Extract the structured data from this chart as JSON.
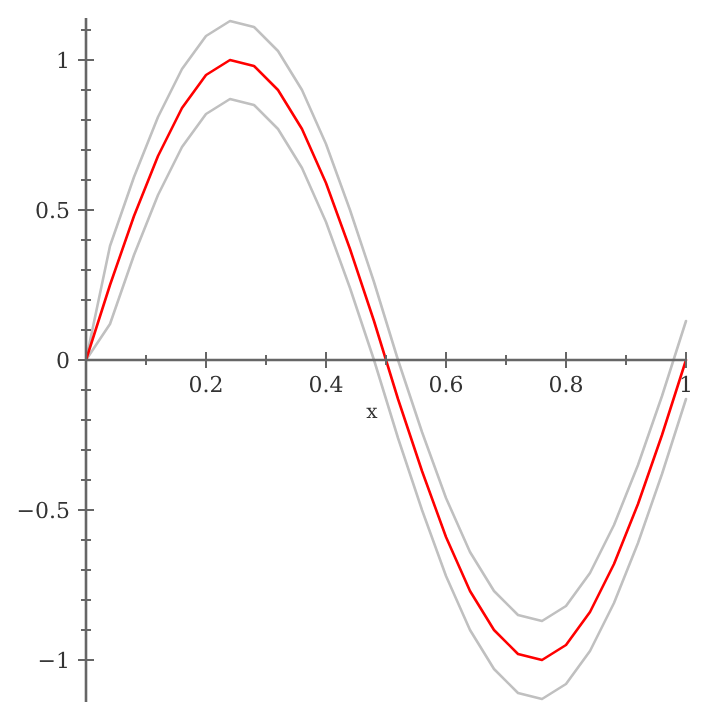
{
  "chart_data": {
    "type": "line",
    "xlabel": "x",
    "xlim": [
      0,
      1
    ],
    "ylim": [
      -1.14,
      1.14
    ],
    "xticks": [
      {
        "value": 0.1,
        "label": null
      },
      0.2,
      {
        "value": 0.3,
        "label": null
      },
      0.4,
      {
        "value": 0.5,
        "label": null
      },
      0.6,
      {
        "value": 0.7,
        "label": null
      },
      0.8,
      {
        "value": 0.9,
        "label": null
      },
      1
    ],
    "yticks": [
      {
        "value": -1,
        "label": "−1"
      },
      {
        "value": -0.9,
        "label": null
      },
      {
        "value": -0.8,
        "label": null
      },
      {
        "value": -0.7,
        "label": null
      },
      {
        "value": -0.6,
        "label": null
      },
      {
        "value": -0.5,
        "label": "−0.5"
      },
      {
        "value": -0.4,
        "label": null
      },
      {
        "value": -0.3,
        "label": null
      },
      {
        "value": -0.2,
        "label": null
      },
      {
        "value": -0.1,
        "label": null
      },
      0,
      {
        "value": 0.1,
        "label": null
      },
      {
        "value": 0.2,
        "label": null
      },
      {
        "value": 0.3,
        "label": null
      },
      {
        "value": 0.4,
        "label": null
      },
      0.5,
      {
        "value": 0.6,
        "label": null
      },
      {
        "value": 0.7,
        "label": null
      },
      {
        "value": 0.8,
        "label": null
      },
      {
        "value": 0.9,
        "label": null
      },
      1,
      {
        "value": 1.1,
        "label": null
      }
    ],
    "x": [
      0,
      0.04,
      0.08,
      0.12,
      0.16,
      0.2,
      0.24,
      0.28,
      0.32,
      0.36,
      0.4,
      0.44,
      0.48,
      0.52,
      0.56,
      0.6,
      0.64,
      0.68,
      0.72,
      0.76,
      0.8,
      0.84,
      0.88,
      0.92,
      0.96,
      1
    ],
    "grid": false,
    "marker": "none",
    "line_style": "solid",
    "series": [
      {
        "color": "#c0c0c0",
        "values": [
          0,
          0.38,
          0.61,
          0.81,
          0.97,
          1.08,
          1.13,
          1.11,
          1.03,
          0.9,
          0.72,
          0.5,
          0.26,
          0,
          -0.24,
          -0.46,
          -0.64,
          -0.77,
          -0.85,
          -0.87,
          -0.82,
          -0.71,
          -0.55,
          -0.35,
          -0.12,
          0.13
        ]
      },
      {
        "color": "#c0c0c0",
        "values": [
          0,
          0.12,
          0.35,
          0.55,
          0.71,
          0.82,
          0.87,
          0.85,
          0.77,
          0.64,
          0.46,
          0.24,
          0,
          -0.26,
          -0.5,
          -0.72,
          -0.9,
          -1.03,
          -1.11,
          -1.13,
          -1.08,
          -0.97,
          -0.81,
          -0.61,
          -0.38,
          -0.13
        ]
      },
      {
        "color": "#ff0000",
        "values": [
          0,
          0.25,
          0.48,
          0.68,
          0.84,
          0.95,
          1,
          0.98,
          0.9,
          0.77,
          0.59,
          0.37,
          0.13,
          -0.13,
          -0.37,
          -0.59,
          -0.77,
          -0.9,
          -0.98,
          -1,
          -0.95,
          -0.84,
          -0.68,
          -0.48,
          -0.25,
          0
        ]
      }
    ]
  }
}
